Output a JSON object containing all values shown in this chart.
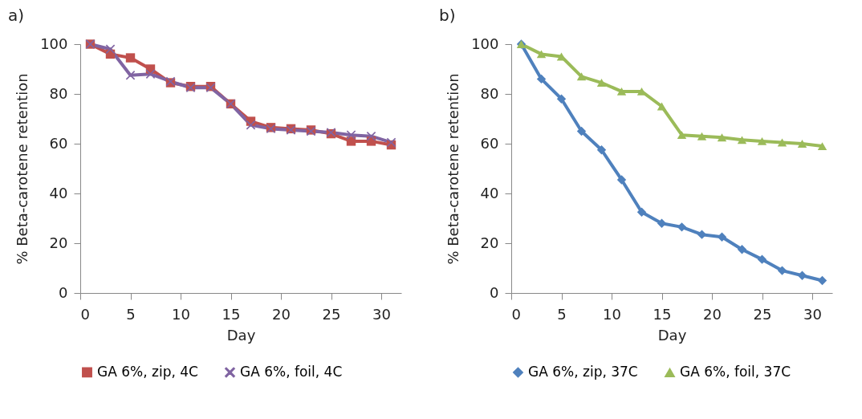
{
  "chart_data": [
    {
      "type": "line",
      "title": "a)",
      "xlabel": "Day",
      "ylabel": "% Beta-carotene retention",
      "x": [
        1,
        3,
        5,
        7,
        9,
        11,
        13,
        15,
        17,
        19,
        21,
        23,
        25,
        27,
        29,
        31
      ],
      "xlim": [
        0,
        32
      ],
      "xticks": [
        0,
        5,
        10,
        15,
        20,
        25,
        30
      ],
      "ylim": [
        0,
        100
      ],
      "yticks": [
        0,
        20,
        40,
        60,
        80,
        100
      ],
      "grid": false,
      "legend": "bottom",
      "series": [
        {
          "name": "GA 6%, zip, 4C",
          "color": "#c0504d",
          "marker": "square",
          "values": [
            100,
            96,
            94.5,
            90,
            84.5,
            83,
            83,
            76,
            69,
            66.5,
            66,
            65.5,
            64,
            61,
            61,
            59.5
          ]
        },
        {
          "name": "GA 6%, foil, 4C",
          "color": "#8064a2",
          "marker": "cross",
          "values": [
            100,
            98,
            87.5,
            88,
            85,
            82.5,
            82.5,
            76,
            67.5,
            66,
            65.5,
            65,
            64.5,
            63.5,
            63,
            60.5
          ]
        }
      ]
    },
    {
      "type": "line",
      "title": "b)",
      "xlabel": "Day",
      "ylabel": "% Beta-carotene retention",
      "x": [
        1,
        3,
        5,
        7,
        9,
        11,
        13,
        15,
        17,
        19,
        21,
        23,
        25,
        27,
        29,
        31
      ],
      "xlim": [
        0,
        32
      ],
      "xticks": [
        0,
        5,
        10,
        15,
        20,
        25,
        30
      ],
      "ylim": [
        0,
        100
      ],
      "yticks": [
        0,
        20,
        40,
        60,
        80,
        100
      ],
      "grid": false,
      "legend": "bottom",
      "series": [
        {
          "name": "GA 6%, zip, 37C",
          "color": "#4f81bd",
          "marker": "diamond",
          "values": [
            100,
            86,
            78,
            65,
            57.5,
            45.5,
            32.5,
            28,
            26.5,
            23.5,
            22.5,
            17.5,
            13.5,
            9,
            7,
            5
          ]
        },
        {
          "name": "GA 6%, foil, 37C",
          "color": "#9bbb59",
          "marker": "triangle",
          "values": [
            100,
            96,
            95,
            87,
            84.5,
            81,
            81,
            75,
            63.5,
            63,
            62.5,
            61.5,
            61,
            60.5,
            60,
            59
          ]
        }
      ]
    }
  ]
}
